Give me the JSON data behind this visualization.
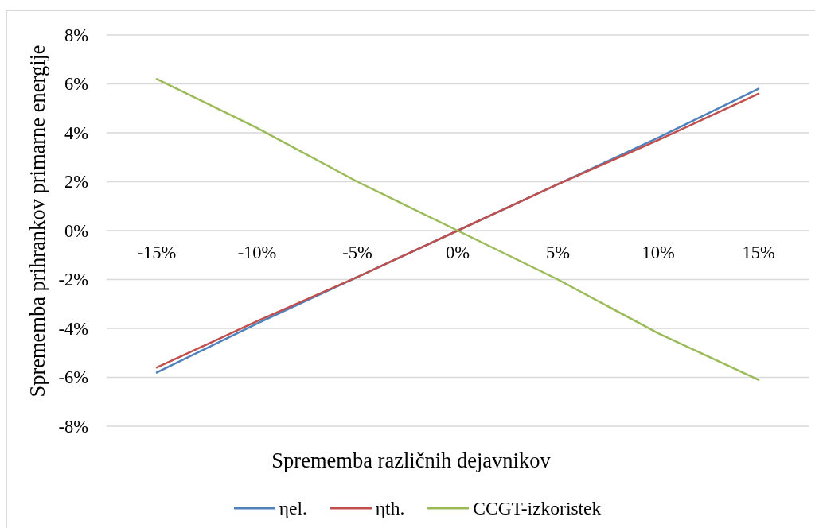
{
  "chart_data": {
    "type": "line",
    "xlabel": "Sprememba različnih dejavnikov",
    "ylabel": "Sprememba prihrankov primarne energije",
    "categories": [
      "-15%",
      "-10%",
      "-5%",
      "0%",
      "5%",
      "10%",
      "15%"
    ],
    "series": [
      {
        "name": "ηel.",
        "color": "#4f81bd",
        "values": [
          -5.8,
          -3.8,
          -1.9,
          0,
          1.9,
          3.8,
          5.8
        ]
      },
      {
        "name": "ηth.",
        "color": "#c0504d",
        "values": [
          -5.6,
          -3.7,
          -1.9,
          0,
          1.9,
          3.7,
          5.6
        ]
      },
      {
        "name": "CCGT-izkoristek",
        "color": "#9bbb59",
        "values": [
          6.2,
          4.2,
          2.0,
          0,
          -2.0,
          -4.2,
          -6.1
        ]
      }
    ],
    "ylim": [
      -8,
      8
    ],
    "yticks": [
      {
        "value": -8,
        "label": "-8%"
      },
      {
        "value": -6,
        "label": "-6%"
      },
      {
        "value": -4,
        "label": "-4%"
      },
      {
        "value": -2,
        "label": "-2%"
      },
      {
        "value": 0,
        "label": "0%"
      },
      {
        "value": 2,
        "label": "2%"
      },
      {
        "value": 4,
        "label": "4%"
      },
      {
        "value": 6,
        "label": "6%"
      },
      {
        "value": 8,
        "label": "8%"
      }
    ],
    "grid": "y",
    "legend": "bottom",
    "marker": "none"
  }
}
